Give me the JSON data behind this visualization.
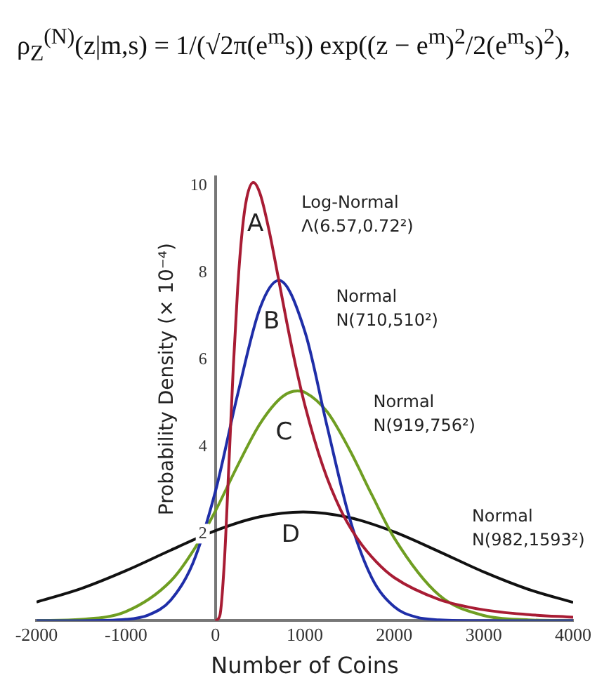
{
  "chart_data": {
    "type": "line",
    "xlabel": "Number of Coins",
    "ylabel": "Probability Density (× 10⁻⁴)",
    "xlim": [
      -2000,
      4000
    ],
    "xticks": [
      -2000,
      -1000,
      0,
      1000,
      2000,
      3000,
      4000
    ],
    "ylim": [
      0,
      10.2
    ],
    "yticks": [
      2,
      4,
      6,
      8,
      10
    ],
    "grid": false,
    "legend": false,
    "marker": "none",
    "line_style": "solid",
    "series": [
      {
        "name": "A",
        "color": "#a81c34",
        "x": [
          0,
          50,
          100,
          150,
          200,
          250,
          300,
          350,
          425,
          500,
          600,
          700,
          800,
          900,
          1000,
          1200,
          1400,
          1600,
          1800,
          2000,
          2500,
          3000,
          3500,
          4000
        ],
        "values": [
          0,
          0.12,
          1.34,
          3.54,
          5.82,
          7.67,
          8.96,
          9.71,
          10.07,
          9.81,
          8.97,
          7.92,
          6.84,
          5.84,
          4.96,
          3.56,
          2.55,
          1.85,
          1.35,
          0.99,
          0.49,
          0.25,
          0.14,
          0.08
        ]
      },
      {
        "name": "B",
        "color": "#1f2ea8",
        "x": [
          -2000,
          -1500,
          -1000,
          -750,
          -500,
          -250,
          0,
          250,
          500,
          710,
          1000,
          1250,
          1500,
          1750,
          2000,
          2250,
          2500,
          3000,
          3500,
          4000
        ],
        "values": [
          0,
          0,
          0.03,
          0.13,
          0.47,
          1.33,
          2.97,
          5.21,
          7.19,
          7.82,
          6.65,
          4.46,
          2.36,
          0.98,
          0.32,
          0.08,
          0.02,
          0,
          0,
          0
        ]
      },
      {
        "name": "C",
        "color": "#6f9e22",
        "x": [
          -2000,
          -1500,
          -1000,
          -500,
          -250,
          0,
          250,
          500,
          750,
          919,
          1000,
          1250,
          1500,
          1750,
          2000,
          2500,
          3000,
          3500,
          4000
        ],
        "values": [
          0,
          0.03,
          0.21,
          0.91,
          1.6,
          2.52,
          3.57,
          4.53,
          5.15,
          5.28,
          5.25,
          4.8,
          3.93,
          2.89,
          1.9,
          0.59,
          0.12,
          0.02,
          0
        ]
      },
      {
        "name": "D",
        "color": "#111111",
        "x": [
          -2000,
          -1500,
          -1000,
          -500,
          0,
          500,
          982,
          1500,
          2000,
          2500,
          3000,
          3500,
          4000
        ],
        "values": [
          0.43,
          0.74,
          1.15,
          1.62,
          2.07,
          2.39,
          2.5,
          2.37,
          2.04,
          1.59,
          1.12,
          0.72,
          0.42
        ]
      }
    ],
    "annotations": [
      "ρ$_{Z}$$^{(N)}$(z|m,s) = 1/(√2π(e$^{m}$s)) exp((z − e$^{m}$)$^{2}$/2(e$^{m}$s)$^{2}$),",
      "Log-Normal\nΛ(6.57,0.72²)",
      "Normal\nN(710,510²)",
      "Normal\nN(919,756²)",
      "Normal\nN(982,1593²)"
    ]
  }
}
